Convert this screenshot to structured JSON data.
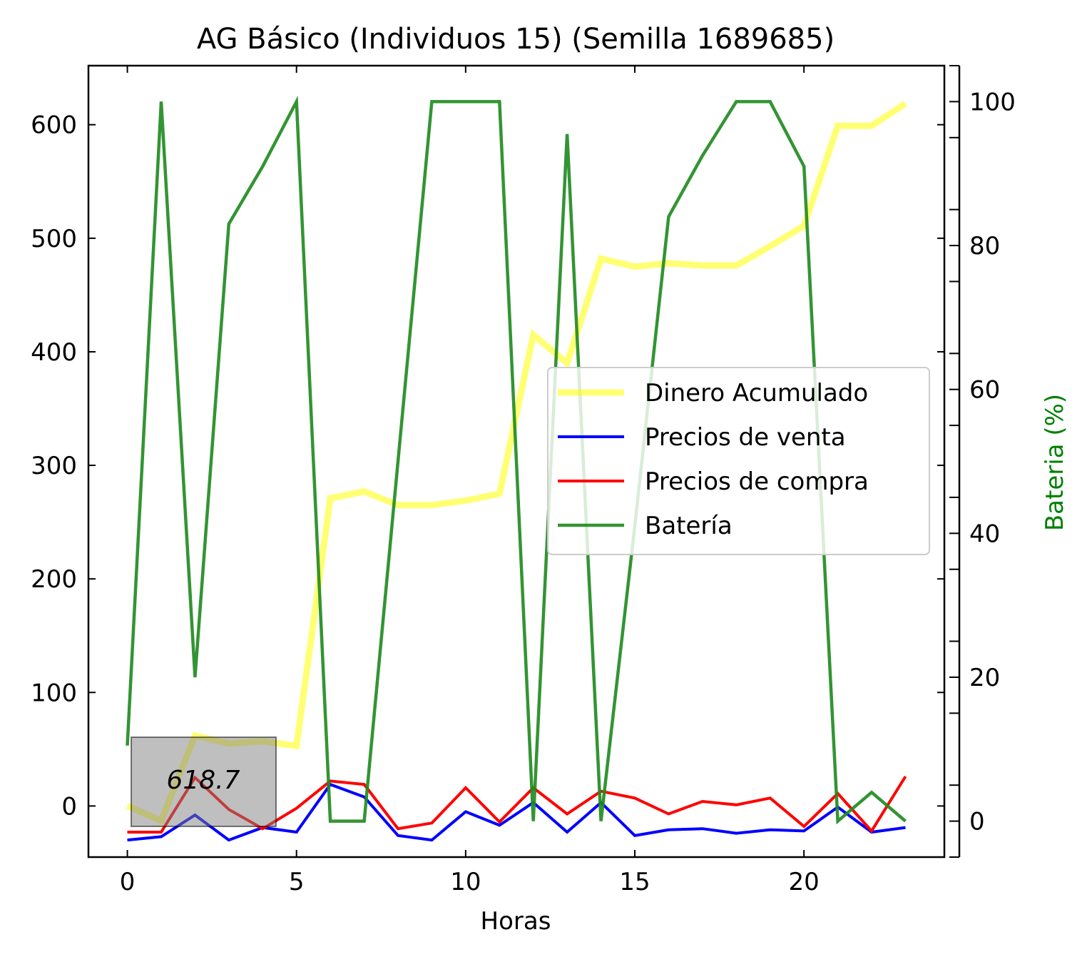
{
  "chart_data": {
    "type": "line",
    "title": "AG Básico (Individuos 15) (Semilla 1689685)",
    "xlabel": "Horas",
    "ylabel": "",
    "y2label": "Bateria (%)",
    "xlim": [
      -1.15,
      24.15
    ],
    "ylim": [
      -45,
      652
    ],
    "y2lim": [
      -5,
      105
    ],
    "xticks": [
      0,
      5,
      10,
      15,
      20
    ],
    "yticks": [
      0,
      100,
      200,
      300,
      400,
      500,
      600
    ],
    "y2ticks": [
      0,
      20,
      40,
      60,
      80,
      100
    ],
    "x": [
      0,
      1,
      2,
      3,
      4,
      5,
      6,
      7,
      8,
      9,
      10,
      11,
      12,
      13,
      14,
      15,
      16,
      17,
      18,
      19,
      20,
      21,
      22,
      23
    ],
    "series": [
      {
        "name": "Dinero Acumulado",
        "axis": "left",
        "color": "#ffff00",
        "opacity": 0.55,
        "width": 9,
        "values": [
          0,
          -13,
          62,
          55,
          57,
          53,
          271,
          277,
          265,
          265,
          269,
          275,
          415,
          390,
          482,
          475,
          478,
          476,
          476,
          493,
          511,
          599,
          599,
          618.7
        ]
      },
      {
        "name": "Precios de venta",
        "axis": "left",
        "color": "#0000ff",
        "opacity": 1,
        "width": 4,
        "values": [
          -30,
          -27,
          -8,
          -30,
          -19,
          -23,
          19,
          8,
          -26,
          -30,
          -5,
          -17,
          3,
          -23,
          3,
          -26,
          -21,
          -20,
          -24,
          -21,
          -22,
          -1,
          -23,
          -19
        ]
      },
      {
        "name": "Precios de compra",
        "axis": "left",
        "color": "#ff0000",
        "opacity": 1,
        "width": 4,
        "values": [
          -23,
          -23,
          25,
          -3,
          -20,
          -2,
          22,
          19,
          -20,
          -15,
          16,
          -14,
          16,
          -7,
          13,
          7,
          -7,
          4,
          1,
          7,
          -18,
          11,
          -22,
          26
        ]
      },
      {
        "name": "Batería",
        "axis": "right",
        "color": "#228b22",
        "opacity": 0.92,
        "width": 4.5,
        "values": [
          10.5,
          100,
          20,
          83,
          91,
          100,
          0,
          0,
          50,
          100,
          100,
          100,
          0,
          95.5,
          0,
          41,
          84,
          92.5,
          100,
          100,
          91,
          0,
          4,
          0
        ]
      }
    ],
    "legend": {
      "position": "center-right"
    },
    "annotation": {
      "text": "618.7"
    }
  }
}
